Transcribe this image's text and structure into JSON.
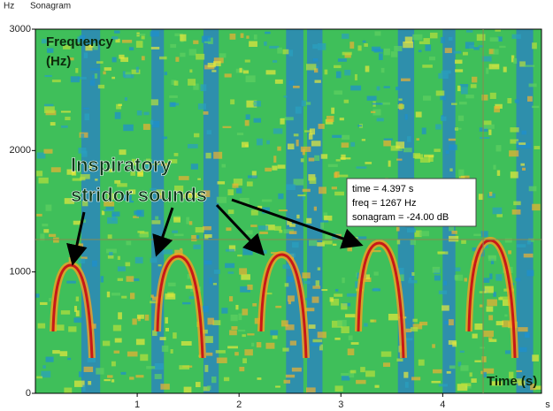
{
  "window_title": "Sonagram",
  "y_axis": {
    "unit": "Hz",
    "label": "Frequency\n(Hz)",
    "lim": [
      0,
      3000
    ],
    "ticks": [
      0,
      1000,
      2000,
      3000
    ]
  },
  "x_axis": {
    "unit": "s",
    "label": "Time (s)",
    "lim": [
      0,
      4.97
    ],
    "ticks": [
      1,
      2,
      3,
      4
    ]
  },
  "annotation": {
    "line1": "Inspiratory",
    "line2": "stridor sounds"
  },
  "readout": {
    "lines": [
      "time = 4.397 s",
      "freq = 1267 Hz",
      "sonagram = -24.00 dB"
    ]
  },
  "cursor": {
    "time": 4.397,
    "freq": 1267
  }
}
